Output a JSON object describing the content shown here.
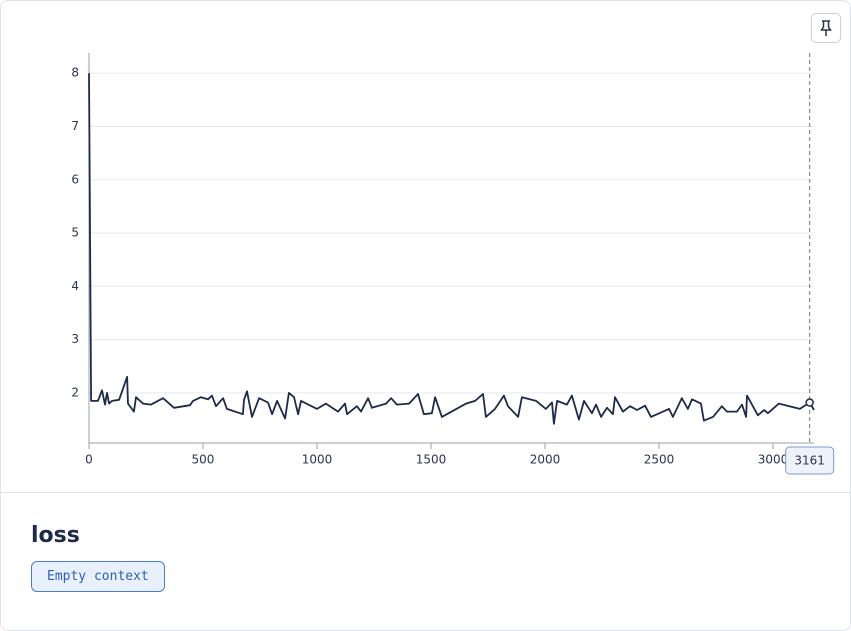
{
  "chart_data": {
    "type": "line",
    "title": "loss",
    "context_tag": "Empty context",
    "x": [
      0,
      9,
      39,
      57,
      70,
      79,
      88,
      101,
      132,
      167,
      171,
      197,
      206,
      237,
      272,
      325,
      373,
      443,
      456,
      491,
      522,
      539,
      557,
      588,
      605,
      675,
      680,
      693,
      715,
      746,
      785,
      803,
      825,
      860,
      877,
      899,
      917,
      930,
      1000,
      1039,
      1092,
      1123,
      1132,
      1175,
      1193,
      1224,
      1241,
      1303,
      1325,
      1351,
      1404,
      1443,
      1469,
      1504,
      1518,
      1548,
      1654,
      1693,
      1728,
      1741,
      1781,
      1820,
      1838,
      1882,
      1899,
      1961,
      2004,
      2031,
      2039,
      2053,
      2096,
      2118,
      2149,
      2171,
      2206,
      2224,
      2246,
      2272,
      2298,
      2307,
      2342,
      2373,
      2404,
      2439,
      2465,
      2544,
      2561,
      2600,
      2627,
      2645,
      2684,
      2697,
      2737,
      2776,
      2798,
      2842,
      2864,
      2882,
      2886,
      2934,
      2961,
      2978,
      3026,
      3118,
      3161,
      3180
    ],
    "series": [
      {
        "name": "loss",
        "color": "#1e2a4a",
        "values": [
          8.0,
          1.85,
          1.85,
          2.05,
          1.78,
          2.0,
          1.8,
          1.85,
          1.87,
          2.3,
          1.8,
          1.65,
          1.92,
          1.8,
          1.78,
          1.9,
          1.72,
          1.77,
          1.85,
          1.92,
          1.88,
          1.95,
          1.75,
          1.9,
          1.7,
          1.6,
          1.87,
          2.03,
          1.55,
          1.9,
          1.82,
          1.6,
          1.85,
          1.52,
          2.0,
          1.92,
          1.6,
          1.85,
          1.7,
          1.8,
          1.65,
          1.8,
          1.6,
          1.75,
          1.65,
          1.9,
          1.72,
          1.8,
          1.9,
          1.78,
          1.8,
          1.98,
          1.6,
          1.62,
          1.92,
          1.55,
          1.8,
          1.85,
          1.98,
          1.55,
          1.7,
          1.95,
          1.75,
          1.55,
          1.92,
          1.85,
          1.7,
          1.82,
          1.42,
          1.85,
          1.78,
          1.95,
          1.5,
          1.85,
          1.62,
          1.78,
          1.55,
          1.72,
          1.6,
          1.92,
          1.65,
          1.75,
          1.68,
          1.76,
          1.55,
          1.7,
          1.55,
          1.9,
          1.7,
          1.88,
          1.8,
          1.48,
          1.55,
          1.75,
          1.65,
          1.65,
          1.78,
          1.55,
          1.95,
          1.58,
          1.68,
          1.62,
          1.8,
          1.7,
          1.82,
          1.68
        ]
      }
    ],
    "xlim": [
      0,
      3180
    ],
    "xticks": [
      0,
      500,
      1000,
      1500,
      2000,
      2500,
      3000
    ],
    "ylim": [
      1.06,
      8.38
    ],
    "yticks": [
      2,
      3,
      4,
      5,
      6,
      7,
      8
    ],
    "grid": true,
    "hover": {
      "x": 3161
    }
  }
}
